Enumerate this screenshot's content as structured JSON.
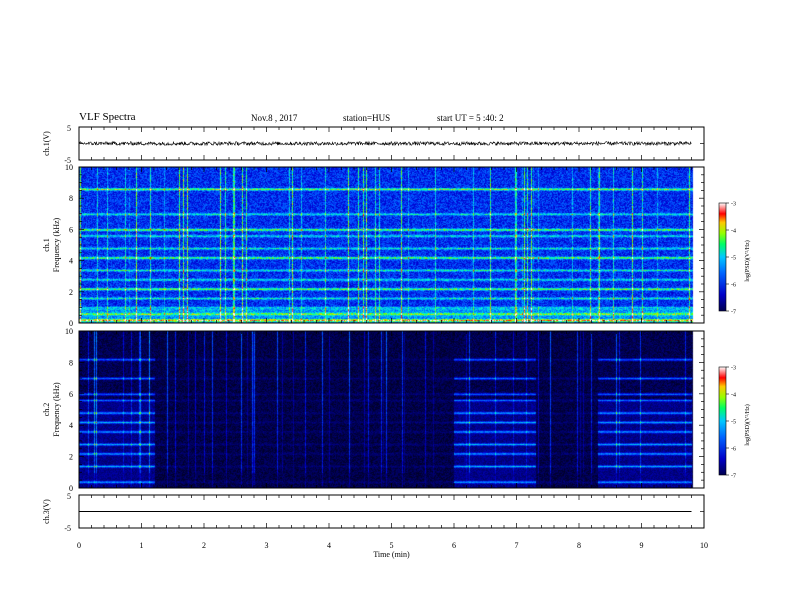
{
  "header": {
    "title": "VLF Spectra",
    "date": "Nov.8 , 2017",
    "station": "station=HUS",
    "start_ut": "start UT = 5 :40: 2"
  },
  "chart_data": [
    {
      "type": "line",
      "panel": "ch1-waveform",
      "ylabel": "ch.1(V)",
      "ylim": [
        -5,
        5
      ],
      "yticks": [
        "5",
        "-5"
      ],
      "xlim": [
        0,
        10
      ],
      "series": [
        {
          "x": [
            0,
            9.8
          ],
          "y": [
            0,
            0
          ],
          "style": "noisy trace, amplitude ~0.5 V"
        }
      ]
    },
    {
      "type": "heatmap",
      "panel": "ch1-spectrogram",
      "ylabel_top": "ch.1",
      "ylabel": "Frequency (kHz)",
      "ylim": [
        0,
        10
      ],
      "yticks": [
        "0",
        "2",
        "4",
        "6",
        "8",
        "10"
      ],
      "xlim": [
        0,
        10
      ],
      "data_extent_min": 9.82,
      "harmonic_bands_khz": [
        0.2,
        0.6,
        1.0,
        1.6,
        2.2,
        2.8,
        3.4,
        4.2,
        4.8,
        5.6,
        6.0,
        7.0,
        8.6
      ],
      "bright_band_khz": [
        0.2,
        4.2,
        2.2,
        8.6,
        6.0
      ],
      "colorbar": {
        "label": "log(PSD)(V²/Hz)",
        "range": [
          -7,
          -3
        ],
        "ticks": [
          "-3",
          "-4",
          "-5",
          "-6",
          "-7"
        ]
      }
    },
    {
      "type": "heatmap",
      "panel": "ch2-spectrogram",
      "ylabel_top": "ch.2",
      "ylabel": "Frequency (kHz)",
      "ylim": [
        0,
        10
      ],
      "yticks": [
        "0",
        "2",
        "4",
        "6",
        "8",
        "10"
      ],
      "xlim": [
        0,
        10
      ],
      "data_extent_min": 9.82,
      "active_intervals_min": [
        [
          0,
          1.2
        ],
        [
          6.0,
          7.3
        ],
        [
          8.3,
          9.8
        ]
      ],
      "harmonic_bands_khz": [
        0.4,
        1.4,
        2.2,
        2.8,
        3.6,
        4.2,
        4.8,
        5.6,
        6.0,
        7.0,
        8.2
      ],
      "colorbar": {
        "label": "log(PSD)(V²/Hz)",
        "range": [
          -7,
          -3
        ],
        "ticks": [
          "-3",
          "-4",
          "-5",
          "-6",
          "-7"
        ]
      }
    },
    {
      "type": "line",
      "panel": "ch3-waveform",
      "ylabel": "ch.3(V)",
      "ylim": [
        -5,
        5
      ],
      "yticks": [
        "5",
        "-5"
      ],
      "xlim": [
        0,
        10
      ],
      "series": [
        {
          "x": [
            0,
            9.8
          ],
          "y": [
            0,
            0
          ],
          "style": "flat trace"
        }
      ]
    }
  ],
  "x_axis": {
    "label": "Time (min)",
    "ticks": [
      "0",
      "1",
      "2",
      "3",
      "4",
      "5",
      "6",
      "7",
      "8",
      "9",
      "10"
    ]
  },
  "colors": {
    "colormap": [
      "#000000",
      "#000060",
      "#0000c8",
      "#0050ff",
      "#00b4ff",
      "#00ffc8",
      "#64ff00",
      "#ffff00",
      "#ff8000",
      "#ff0000",
      "#ffffff"
    ],
    "axis": "#000000",
    "trace": "#000000"
  }
}
